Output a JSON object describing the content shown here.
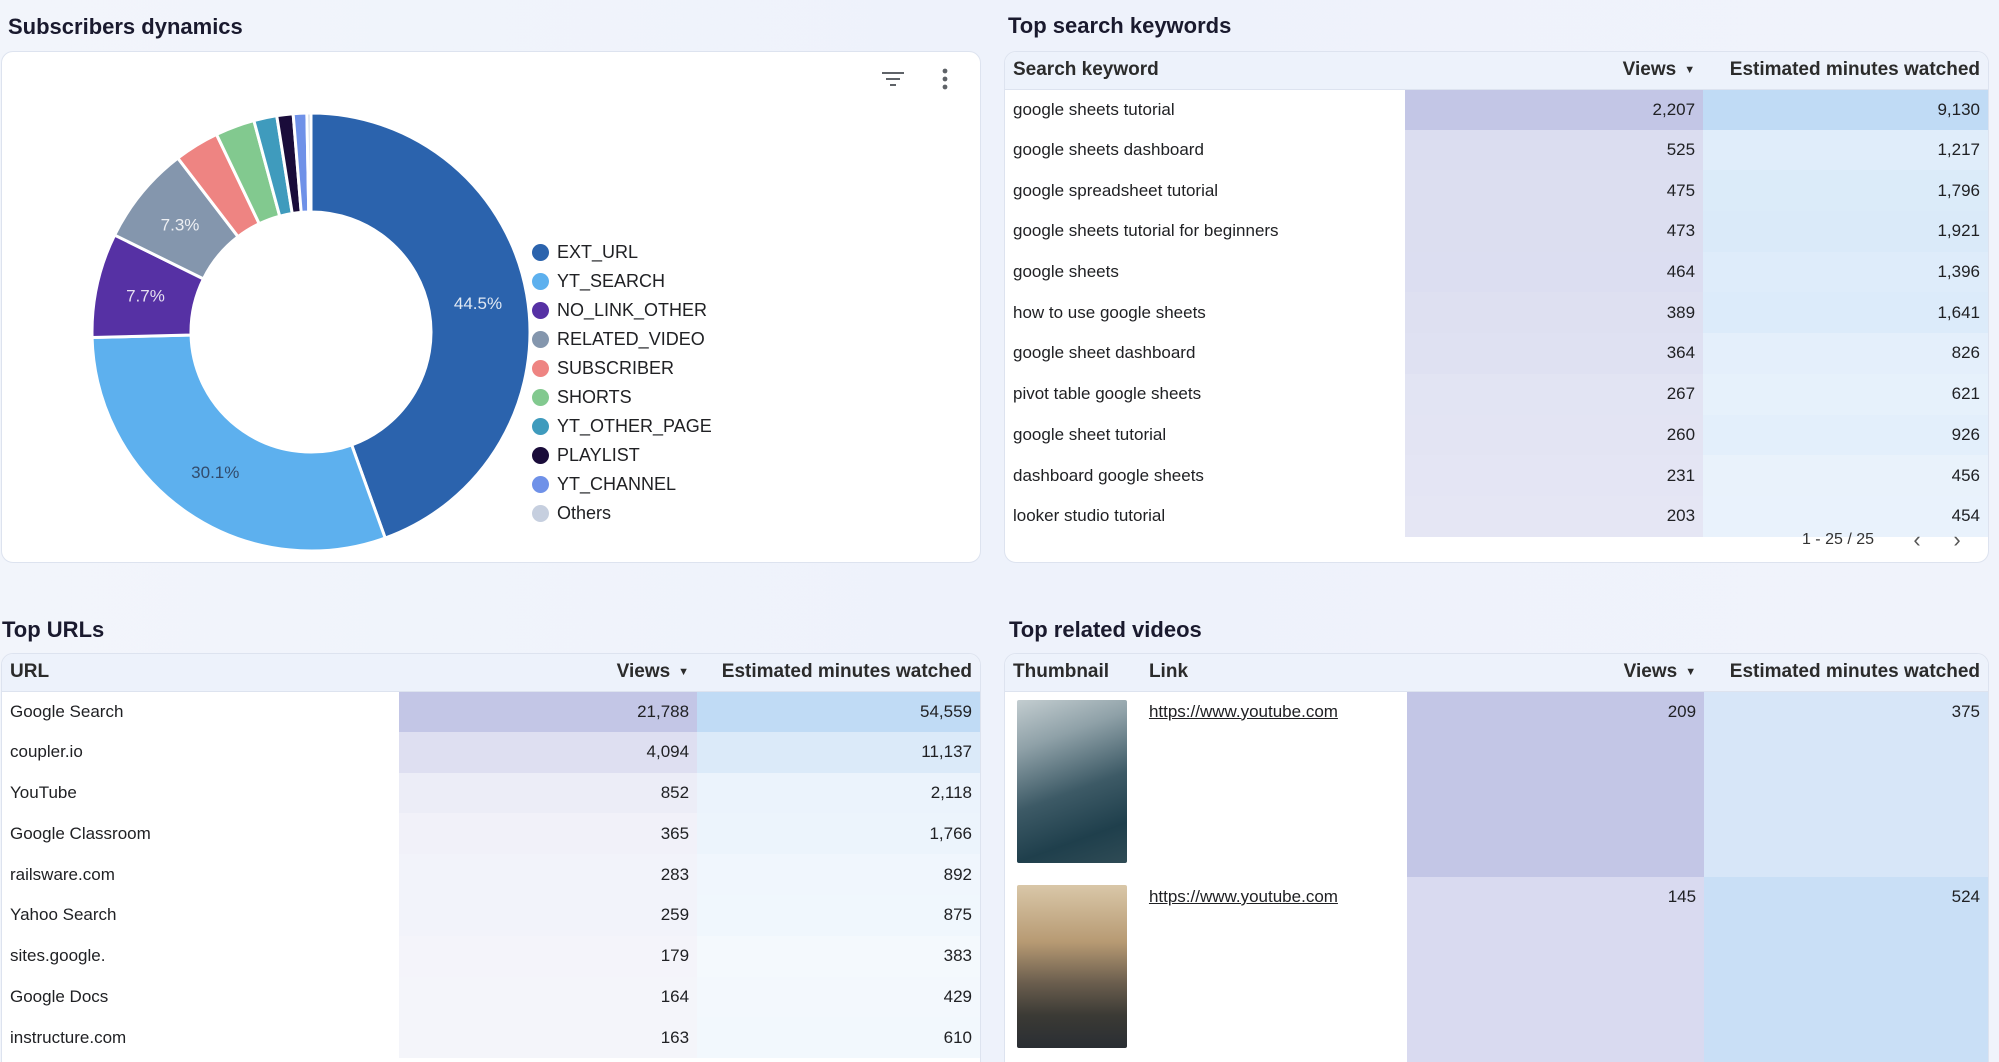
{
  "subscribers": {
    "title": "Subscribers dynamics",
    "chart_data": {
      "type": "pie",
      "categories": [
        "EXT_URL",
        "YT_SEARCH",
        "NO_LINK_OTHER",
        "RELATED_VIDEO",
        "SUBSCRIBER",
        "SHORTS",
        "YT_OTHER_PAGE",
        "PLAYLIST",
        "YT_CHANNEL",
        "Others"
      ],
      "values": [
        44.5,
        30.1,
        7.7,
        7.3,
        3.3,
        2.9,
        1.7,
        1.2,
        1.0,
        0.3
      ],
      "labels": [
        "44.5%",
        "30.1%",
        "7.7%",
        "7.3%",
        "",
        "",
        "",
        "",
        "",
        ""
      ],
      "colors": [
        "#2b63ad",
        "#5db0ee",
        "#5631a4",
        "#8496ad",
        "#ee8482",
        "#82c98f",
        "#3f9bbd",
        "#1a0c3a",
        "#6f91e8",
        "#c6cfdf"
      ],
      "donut": true,
      "legend": "right"
    }
  },
  "keywords": {
    "title": "Top search keywords",
    "headers": {
      "keyword": "Search keyword",
      "views": "Views",
      "minutes": "Estimated minutes watched"
    },
    "rows": [
      {
        "keyword": "google sheets tutorial",
        "views": "2,207",
        "minutes": "9,130"
      },
      {
        "keyword": "google sheets dashboard",
        "views": "525",
        "minutes": "1,217"
      },
      {
        "keyword": "google spreadsheet tutorial",
        "views": "475",
        "minutes": "1,796"
      },
      {
        "keyword": "google sheets tutorial for beginners",
        "views": "473",
        "minutes": "1,921"
      },
      {
        "keyword": "google sheets",
        "views": "464",
        "minutes": "1,396"
      },
      {
        "keyword": "how to use google sheets",
        "views": "389",
        "minutes": "1,641"
      },
      {
        "keyword": "google sheet dashboard",
        "views": "364",
        "minutes": "826"
      },
      {
        "keyword": "pivot table google sheets",
        "views": "267",
        "minutes": "621"
      },
      {
        "keyword": "google sheet tutorial",
        "views": "260",
        "minutes": "926"
      },
      {
        "keyword": "dashboard google sheets",
        "views": "231",
        "minutes": "456"
      },
      {
        "keyword": "looker studio tutorial",
        "views": "203",
        "minutes": "454"
      }
    ],
    "pager": "1 - 25 / 25"
  },
  "urls": {
    "title": "Top URLs",
    "headers": {
      "url": "URL",
      "views": "Views",
      "minutes": "Estimated minutes watched"
    },
    "rows": [
      {
        "url": "Google Search",
        "views": "21,788",
        "minutes": "54,559"
      },
      {
        "url": "coupler.io",
        "views": "4,094",
        "minutes": "11,137"
      },
      {
        "url": "YouTube",
        "views": "852",
        "minutes": "2,118"
      },
      {
        "url": "Google Classroom",
        "views": "365",
        "minutes": "1,766"
      },
      {
        "url": "railsware.com",
        "views": "283",
        "minutes": "892"
      },
      {
        "url": "Yahoo Search",
        "views": "259",
        "minutes": "875"
      },
      {
        "url": "sites.google.",
        "views": "179",
        "minutes": "383"
      },
      {
        "url": "Google Docs",
        "views": "164",
        "minutes": "429"
      },
      {
        "url": "instructure.com",
        "views": "163",
        "minutes": "610"
      }
    ]
  },
  "related": {
    "title": "Top related videos",
    "headers": {
      "thumbnail": "Thumbnail",
      "link": "Link",
      "views": "Views",
      "minutes": "Estimated minutes watched"
    },
    "rows": [
      {
        "link": "https://www.youtube.com",
        "views": "209",
        "minutes": "375"
      },
      {
        "link": "https://www.youtube.com",
        "views": "145",
        "minutes": "524"
      }
    ]
  }
}
